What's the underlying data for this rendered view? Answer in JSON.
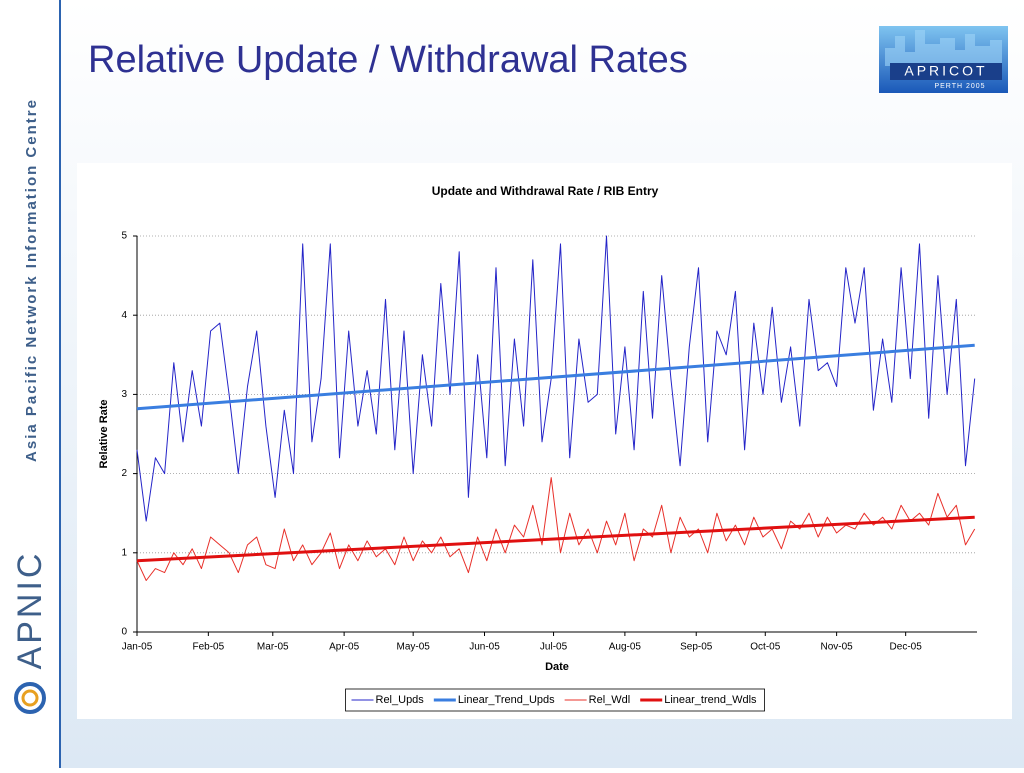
{
  "header": {
    "title": "Relative Update / Withdrawal Rates"
  },
  "sidebar": {
    "organization": "Asia Pacific Network Information Centre",
    "brand": "APNIC"
  },
  "logo": {
    "name": "APRICOT",
    "subtitle": "PERTH 2005"
  },
  "chart_data": {
    "type": "line",
    "title": "Update and Withdrawal Rate / RIB Entry",
    "xlabel": "Date",
    "ylabel": "Relative Rate",
    "xlim": [
      0,
      365
    ],
    "xticks": [
      {
        "value": 0,
        "label": "Jan-05"
      },
      {
        "value": 31,
        "label": "Feb-05"
      },
      {
        "value": 59,
        "label": "Mar-05"
      },
      {
        "value": 90,
        "label": "Apr-05"
      },
      {
        "value": 120,
        "label": "May-05"
      },
      {
        "value": 151,
        "label": "Jun-05"
      },
      {
        "value": 181,
        "label": "Jul-05"
      },
      {
        "value": 212,
        "label": "Aug-05"
      },
      {
        "value": 243,
        "label": "Sep-05"
      },
      {
        "value": 273,
        "label": "Oct-05"
      },
      {
        "value": 304,
        "label": "Nov-05"
      },
      {
        "value": 334,
        "label": "Dec-05"
      }
    ],
    "ylim": [
      0,
      5
    ],
    "yticks": [
      0,
      1,
      2,
      3,
      4,
      5
    ],
    "grid": true,
    "legend": "bottom",
    "x": [
      0,
      4,
      8,
      12,
      16,
      20,
      24,
      28,
      32,
      36,
      40,
      44,
      48,
      52,
      56,
      60,
      64,
      68,
      72,
      76,
      80,
      84,
      88,
      92,
      96,
      100,
      104,
      108,
      112,
      116,
      120,
      124,
      128,
      132,
      136,
      140,
      144,
      148,
      152,
      156,
      160,
      164,
      168,
      172,
      176,
      180,
      184,
      188,
      192,
      196,
      200,
      204,
      208,
      212,
      216,
      220,
      224,
      228,
      232,
      236,
      240,
      244,
      248,
      252,
      256,
      260,
      264,
      268,
      272,
      276,
      280,
      284,
      288,
      292,
      296,
      300,
      304,
      308,
      312,
      316,
      320,
      324,
      328,
      332,
      336,
      340,
      344,
      348,
      352,
      356,
      360,
      364
    ],
    "series": [
      {
        "name": "Rel_Upds",
        "color": "#2424c8",
        "line_width": 1,
        "values": [
          2.3,
          1.4,
          2.2,
          2.0,
          3.4,
          2.4,
          3.3,
          2.6,
          3.8,
          3.9,
          3.0,
          2.0,
          3.1,
          3.8,
          2.6,
          1.7,
          2.8,
          2.0,
          4.9,
          2.4,
          3.2,
          4.9,
          2.2,
          3.8,
          2.6,
          3.3,
          2.5,
          4.2,
          2.3,
          3.8,
          2.0,
          3.5,
          2.6,
          4.4,
          3.0,
          4.8,
          1.7,
          3.5,
          2.2,
          4.6,
          2.1,
          3.7,
          2.6,
          4.7,
          2.4,
          3.2,
          4.9,
          2.2,
          3.7,
          2.9,
          3.0,
          5.0,
          2.5,
          3.6,
          2.3,
          4.3,
          2.7,
          4.5,
          3.2,
          2.1,
          3.6,
          4.6,
          2.4,
          3.8,
          3.5,
          4.3,
          2.3,
          3.9,
          3.0,
          4.1,
          2.9,
          3.6,
          2.6,
          4.2,
          3.3,
          3.4,
          3.1,
          4.6,
          3.9,
          4.6,
          2.8,
          3.7,
          2.9,
          4.6,
          3.2,
          4.9,
          2.7,
          4.5,
          3.0,
          4.2,
          2.1,
          3.2
        ]
      },
      {
        "name": "Linear_Trend_Upds",
        "color": "#3a7ee0",
        "line_width": 3,
        "x": [
          0,
          364
        ],
        "values": [
          2.82,
          3.62
        ]
      },
      {
        "name": "Rel_Wdl",
        "color": "#e8302a",
        "line_width": 1,
        "values": [
          0.9,
          0.65,
          0.8,
          0.75,
          1.0,
          0.85,
          1.05,
          0.8,
          1.2,
          1.1,
          1.0,
          0.75,
          1.1,
          1.2,
          0.85,
          0.8,
          1.3,
          0.9,
          1.1,
          0.85,
          1.0,
          1.25,
          0.8,
          1.1,
          0.9,
          1.15,
          0.95,
          1.05,
          0.85,
          1.2,
          0.9,
          1.15,
          1.0,
          1.2,
          0.95,
          1.05,
          0.75,
          1.2,
          0.9,
          1.3,
          1.0,
          1.35,
          1.2,
          1.6,
          1.1,
          1.95,
          1.0,
          1.5,
          1.1,
          1.3,
          1.0,
          1.4,
          1.1,
          1.5,
          0.9,
          1.3,
          1.2,
          1.6,
          1.0,
          1.45,
          1.2,
          1.3,
          1.0,
          1.5,
          1.15,
          1.35,
          1.1,
          1.45,
          1.2,
          1.3,
          1.05,
          1.4,
          1.3,
          1.5,
          1.2,
          1.45,
          1.25,
          1.35,
          1.3,
          1.5,
          1.35,
          1.45,
          1.3,
          1.6,
          1.4,
          1.5,
          1.35,
          1.75,
          1.45,
          1.6,
          1.1,
          1.3
        ]
      },
      {
        "name": "Linear_trend_Wdls",
        "color": "#e01010",
        "line_width": 3,
        "x": [
          0,
          364
        ],
        "values": [
          0.9,
          1.45
        ]
      }
    ]
  }
}
